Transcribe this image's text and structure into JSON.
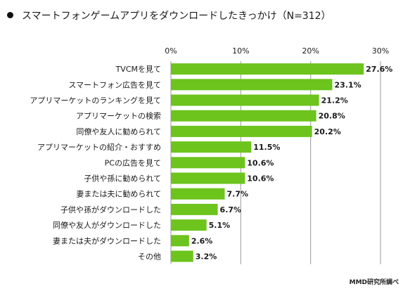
{
  "title": "スマートフォンゲームアプリをダウンロードしたきっかけ（N=312）",
  "source": "MMD研究所調べ",
  "colors": {
    "bar": "#6cc41c",
    "grid": "#9a9a9a",
    "text": "#1a1a1a"
  },
  "chart_data": {
    "type": "bar",
    "orientation": "horizontal",
    "xlim": [
      0,
      30
    ],
    "ticks": [
      "0%",
      "10%",
      "20%",
      "30%"
    ],
    "tick_values": [
      0,
      10,
      20,
      30
    ],
    "grid": true,
    "categories": [
      "TVCMを見て",
      "スマートフォン広告を見て",
      "アプリマーケットのランキングを見て",
      "アプリマーケットの検索",
      "同僚や友人に勧められて",
      "アプリマーケットの紹介・おすすめ",
      "PCの広告を見て",
      "子供や孫に勧められて",
      "妻または夫に勧められて",
      "子供や孫がダウンロードした",
      "同僚や友人がダウンロードした",
      "妻または夫がダウンロードした",
      "その他"
    ],
    "values": [
      27.6,
      23.1,
      21.2,
      20.8,
      20.2,
      11.5,
      10.6,
      10.6,
      7.7,
      6.7,
      5.1,
      2.6,
      3.2
    ],
    "data_labels": [
      "27.6%",
      "23.1%",
      "21.2%",
      "20.8%",
      "20.2%",
      "11.5%",
      "10.6%",
      "10.6%",
      "7.7%",
      "6.7%",
      "5.1%",
      "2.6%",
      "3.2%"
    ]
  }
}
